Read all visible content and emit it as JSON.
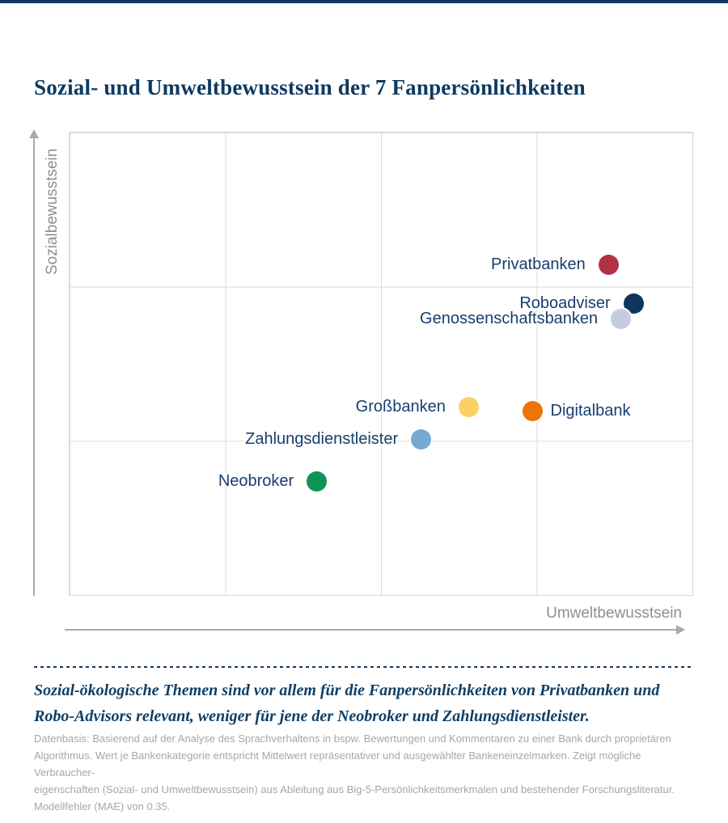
{
  "title": "Sozial- und Umweltbewusstsein der 7 Fanpersönlichkeiten",
  "chart_data": {
    "type": "scatter",
    "title": "Sozial- und Umweltbewusstsein der 7 Fanpersönlichkeiten",
    "xlabel": "Umweltbewusstsein",
    "ylabel": "Sozialbewusstsein",
    "xlim": [
      0,
      1
    ],
    "ylim": [
      0,
      1
    ],
    "grid": {
      "columns": 4,
      "rows": 3,
      "visible": true,
      "color": "#dcdcdc"
    },
    "legend_position": "none",
    "points": [
      {
        "label": "Privatbanken",
        "x": 0.863,
        "y": 0.716,
        "color": "#b23245",
        "label_side": "left"
      },
      {
        "label": "Roboadviser",
        "x": 0.903,
        "y": 0.632,
        "color": "#10355c",
        "label_side": "left"
      },
      {
        "label": "Genossenschaftsbanken",
        "x": 0.883,
        "y": 0.598,
        "color": "#c6cce0",
        "label_side": "left"
      },
      {
        "label": "Großbanken",
        "x": 0.639,
        "y": 0.408,
        "color": "#fcd164",
        "label_side": "left"
      },
      {
        "label": "Digitalbank",
        "x": 0.741,
        "y": 0.399,
        "color": "#ec7505",
        "label_side": "right"
      },
      {
        "label": "Zahlungsdienstleister",
        "x": 0.563,
        "y": 0.338,
        "color": "#74a9d4",
        "label_side": "left"
      },
      {
        "label": "Neobroker",
        "x": 0.396,
        "y": 0.249,
        "color": "#0d9457",
        "label_side": "left"
      }
    ]
  },
  "summary": {
    "line1": "Sozial-ökologische Themen sind vor allem für die Fanpersönlichkeiten von Privatbanken und",
    "line2": "Robo-Advisors relevant, weniger für jene der Neobroker und Zahlungsdienstleister."
  },
  "footnote": {
    "lines": [
      "Datenbasis: Basierend auf der Analyse des Sprachverhaltens in bspw. Bewertungen und Kommentaren zu einer Bank durch proprietären",
      "Algorithmus. Wert je Bankenkategorie entspricht Mittelwert repräsentativer und ausgewählter Bankeneinzelmarken. Zeigt mögliche Verbraucher-",
      "eigenschaften (Sozial- und Umweltbewusstsein) aus Ableitung aus Big-5-Persönlichkeitsmerkmalen und bestehender Forschungsliteratur.",
      "Modellfehler (MAE) von 0.35."
    ]
  },
  "colors": {
    "accent_navy": "#0e3a61",
    "label_navy": "#173e6e",
    "axis_gray": "#a9a9a9",
    "footnote_gray": "#a7a7a7"
  }
}
